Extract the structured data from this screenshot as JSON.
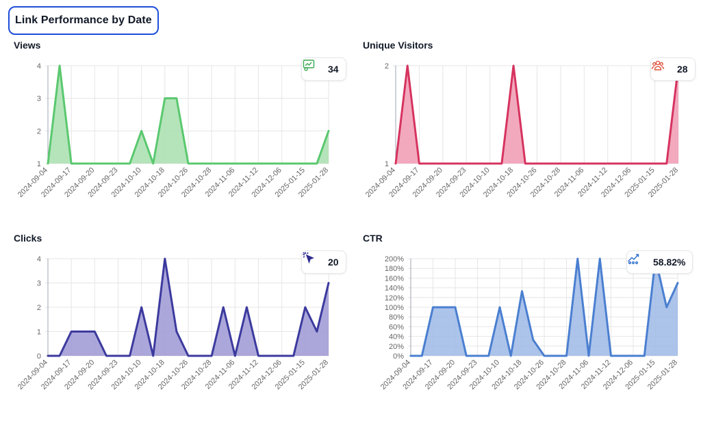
{
  "page": {
    "title": "Link Performance by Date"
  },
  "panels": [
    {
      "id": "views",
      "title": "Views",
      "badge": {
        "icon": "views-chart-icon",
        "value": "34"
      }
    },
    {
      "id": "visitors",
      "title": "Unique Visitors",
      "badge": {
        "icon": "users-group-icon",
        "value": "28"
      }
    },
    {
      "id": "clicks",
      "title": "Clicks",
      "badge": {
        "icon": "cursor-click-icon",
        "value": "20"
      }
    },
    {
      "id": "ctr",
      "title": "CTR",
      "badge": {
        "icon": "trend-users-icon",
        "value": "58.82%"
      }
    }
  ],
  "chart_data": [
    {
      "type": "area",
      "title": "Views",
      "color": "#5ac86f",
      "fill": "#a8dfae",
      "ylim": [
        1,
        4
      ],
      "yticks": [
        1,
        2,
        3,
        4
      ],
      "ytick_format": "plain",
      "x_tick_labels": [
        "2024-09-04",
        "2024-09-17",
        "2024-09-20",
        "2024-09-23",
        "2024-10-10",
        "2024-10-18",
        "2024-10-26",
        "2024-10-28",
        "2024-11-06",
        "2024-11-12",
        "2024-12-06",
        "2025-01-15",
        "2025-01-28"
      ],
      "values": [
        1,
        4,
        1,
        1,
        1,
        1,
        1,
        1,
        2,
        1,
        3,
        3,
        1,
        1,
        1,
        1,
        1,
        1,
        1,
        1,
        1,
        1,
        1,
        1,
        2
      ],
      "grid": true
    },
    {
      "type": "area",
      "title": "Unique Visitors",
      "color": "#d6335f",
      "fill": "#f09ab1",
      "ylim": [
        1,
        2
      ],
      "yticks": [
        1,
        2
      ],
      "ytick_format": "plain",
      "x_tick_labels": [
        "2024-09-04",
        "2024-09-17",
        "2024-09-20",
        "2024-09-23",
        "2024-10-10",
        "2024-10-18",
        "2024-10-26",
        "2024-10-28",
        "2024-11-06",
        "2024-11-12",
        "2024-12-06",
        "2025-01-15",
        "2025-01-28"
      ],
      "values": [
        1,
        2,
        1,
        1,
        1,
        1,
        1,
        1,
        1,
        1,
        2,
        1,
        1,
        1,
        1,
        1,
        1,
        1,
        1,
        1,
        1,
        1,
        1,
        1,
        2
      ],
      "grid": true
    },
    {
      "type": "area",
      "title": "Clicks",
      "color": "#3c3a9e",
      "fill": "#9c98d4",
      "ylim": [
        0,
        4
      ],
      "yticks": [
        0,
        1,
        2,
        3,
        4
      ],
      "ytick_format": "plain",
      "x_tick_labels": [
        "2024-09-04",
        "2024-09-17",
        "2024-09-20",
        "2024-09-23",
        "2024-10-10",
        "2024-10-18",
        "2024-10-26",
        "2024-10-28",
        "2024-11-06",
        "2024-11-12",
        "2024-12-06",
        "2025-01-15",
        "2025-01-28"
      ],
      "values": [
        0,
        0,
        1,
        1,
        1,
        0,
        0,
        0,
        2,
        0,
        4,
        1,
        0,
        0,
        0,
        2,
        0,
        2,
        0,
        0,
        0,
        0,
        2,
        1,
        3
      ],
      "grid": true
    },
    {
      "type": "area",
      "title": "CTR",
      "color": "#4a7fd0",
      "fill": "#9db8e6",
      "ylim": [
        0,
        200
      ],
      "yticks": [
        0,
        20,
        40,
        60,
        80,
        100,
        120,
        140,
        160,
        180,
        200
      ],
      "ytick_format": "percent",
      "x_tick_labels": [
        "2024-09-04",
        "2024-09-17",
        "2024-09-20",
        "2024-09-23",
        "2024-10-10",
        "2024-10-18",
        "2024-10-26",
        "2024-10-28",
        "2024-11-06",
        "2024-11-12",
        "2024-12-06",
        "2025-01-15",
        "2025-01-28"
      ],
      "values": [
        0,
        0,
        100,
        100,
        100,
        0,
        0,
        0,
        100,
        0,
        133,
        33,
        0,
        0,
        0,
        200,
        0,
        200,
        0,
        0,
        0,
        0,
        200,
        100,
        150
      ],
      "grid": true
    }
  ]
}
